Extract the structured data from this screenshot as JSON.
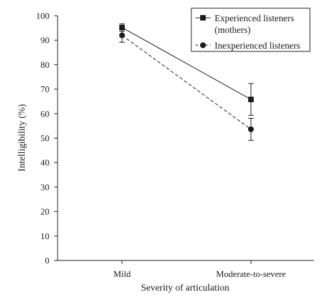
{
  "chart_data": {
    "type": "line",
    "xlabel": "Severity of articulation",
    "ylabel": "Intelligibility (%)",
    "categories": [
      "Mild",
      "Moderate-to-severe"
    ],
    "ylim": [
      0,
      100
    ],
    "yticks": [
      0,
      10,
      20,
      30,
      40,
      50,
      60,
      70,
      80,
      90,
      100
    ],
    "grid": false,
    "legend_position": "top-right",
    "series": [
      {
        "name": "Experienced listeners (mothers)",
        "legend_lines": [
          "Experienced listeners",
          "(mothers)"
        ],
        "marker": "square",
        "line_style": "solid",
        "color": "#1a1a1a",
        "values": [
          95.2,
          65.8
        ],
        "error": [
          1.5,
          6.5
        ]
      },
      {
        "name": "Inexperienced listeners",
        "legend_lines": [
          "Inexperienced listeners"
        ],
        "marker": "circle",
        "line_style": "dashed",
        "color": "#1a1a1a",
        "values": [
          92.0,
          53.6
        ],
        "error": [
          2.8,
          4.5
        ]
      }
    ]
  }
}
